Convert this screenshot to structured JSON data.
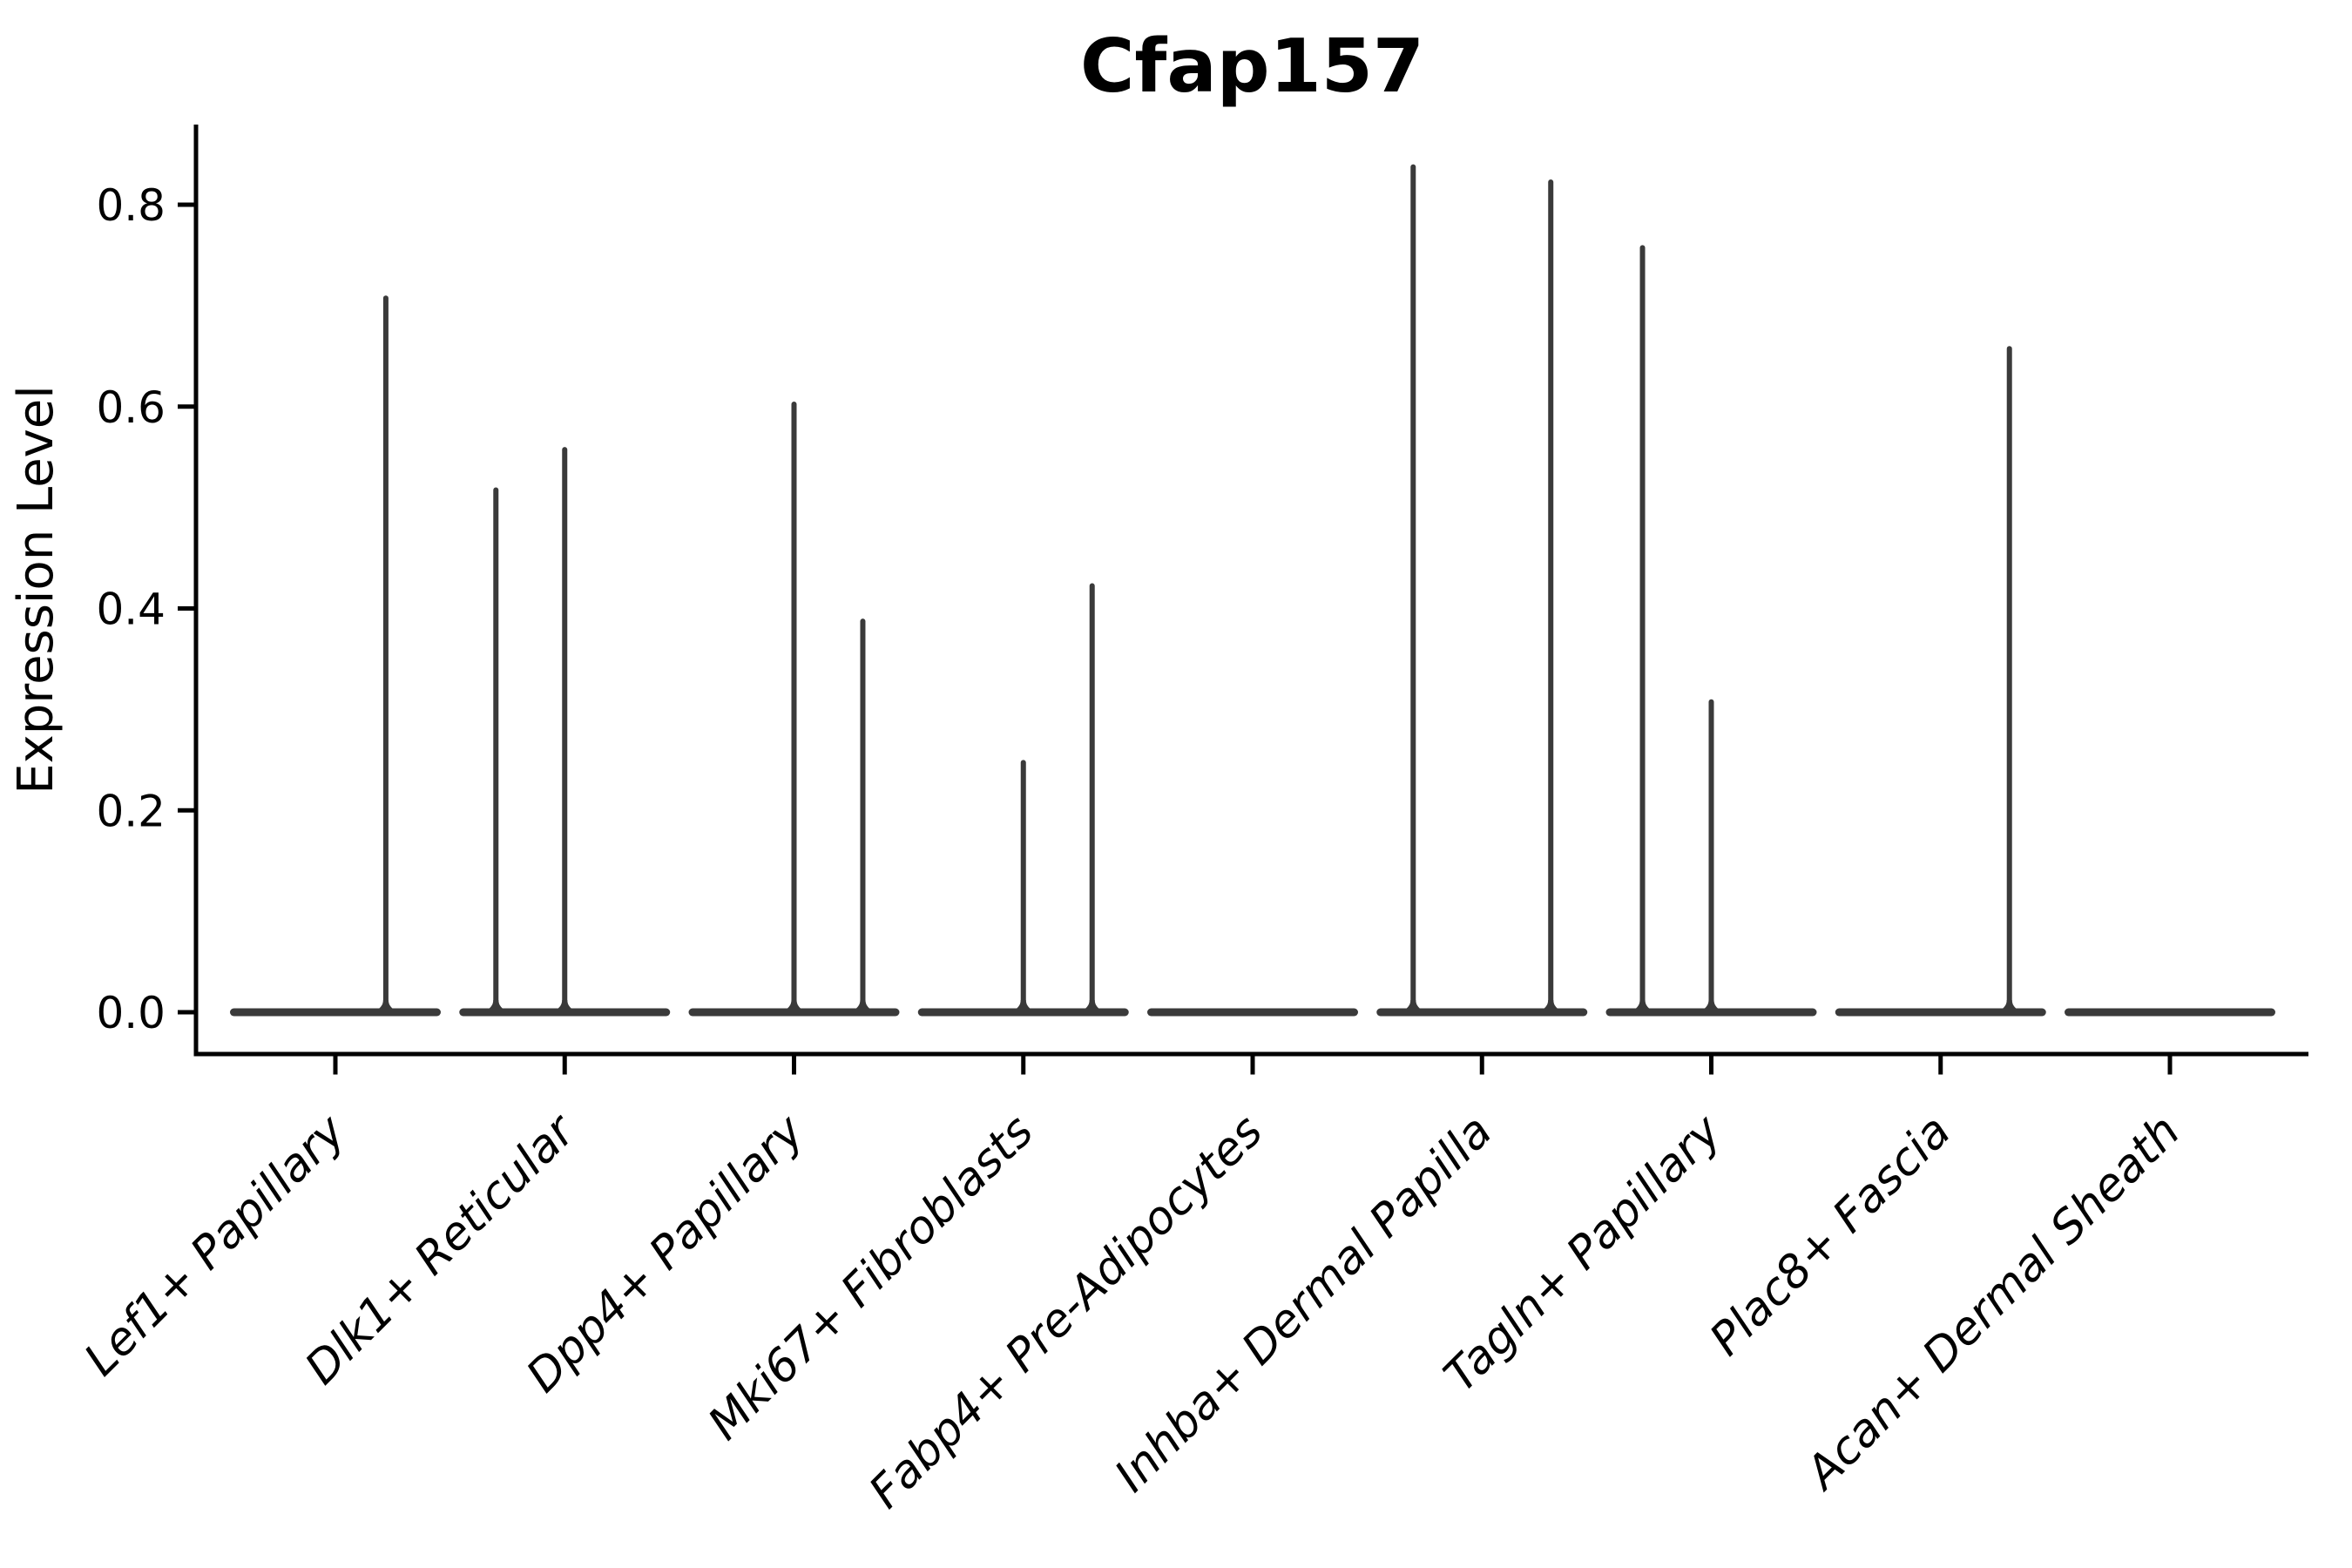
{
  "chart_data": {
    "type": "violin",
    "title": "Cfap157",
    "xlabel": "",
    "ylabel": "Expression Level",
    "categories": [
      "Lef1+ Papillary",
      "Dlk1+ Reticular",
      "Dpp4+ Papillary",
      "Mki67+ Fibroblasts",
      "Fabp4+ Pre-Adipocytes",
      "Inhba+ Dermal Papilla",
      "Tagln+ Papillary",
      "Plac8+ Fascia",
      "Acan+ Dermal Sheath"
    ],
    "ytick_labels": [
      "0.0",
      "0.2",
      "0.4",
      "0.6",
      "0.8"
    ],
    "yticks": [
      0.0,
      0.2,
      0.4,
      0.6,
      0.8
    ],
    "ylim": [
      -0.043,
      0.879
    ],
    "grid": false,
    "legend": "none",
    "violins": [
      {
        "category": "Lef1+ Papillary",
        "baseline_value": 0.0,
        "spikes": [
          {
            "x_offset": 0.22,
            "max_value": 0.71
          }
        ]
      },
      {
        "category": "Dlk1+ Reticular",
        "baseline_value": 0.0,
        "spikes": [
          {
            "x_offset": -0.3,
            "max_value": 0.52
          },
          {
            "x_offset": 0.0,
            "max_value": 0.56
          }
        ]
      },
      {
        "category": "Dpp4+ Papillary",
        "baseline_value": 0.0,
        "spikes": [
          {
            "x_offset": 0.0,
            "max_value": 0.605
          },
          {
            "x_offset": 0.3,
            "max_value": 0.39
          }
        ]
      },
      {
        "category": "Mki67+ Fibroblasts",
        "baseline_value": 0.0,
        "spikes": [
          {
            "x_offset": 0.0,
            "max_value": 0.25
          },
          {
            "x_offset": 0.3,
            "max_value": 0.425
          }
        ]
      },
      {
        "category": "Fabp4+ Pre-Adipocytes",
        "baseline_value": 0.0,
        "spikes": []
      },
      {
        "category": "Inhba+ Dermal Papilla",
        "baseline_value": 0.0,
        "spikes": [
          {
            "x_offset": -0.3,
            "max_value": 0.84
          },
          {
            "x_offset": 0.3,
            "max_value": 0.825
          }
        ]
      },
      {
        "category": "Tagln+ Papillary",
        "baseline_value": 0.0,
        "spikes": [
          {
            "x_offset": -0.3,
            "max_value": 0.76
          },
          {
            "x_offset": 0.0,
            "max_value": 0.31
          }
        ]
      },
      {
        "category": "Plac8+ Fascia",
        "baseline_value": 0.0,
        "spikes": [
          {
            "x_offset": 0.3,
            "max_value": 0.66
          }
        ]
      },
      {
        "category": "Acan+ Dermal Sheath",
        "baseline_value": 0.0,
        "spikes": []
      }
    ]
  },
  "style": {
    "background": "#ffffff",
    "text_color": "#000000",
    "spine_color": "#000000",
    "violin_color": "#3a3a3a"
  }
}
